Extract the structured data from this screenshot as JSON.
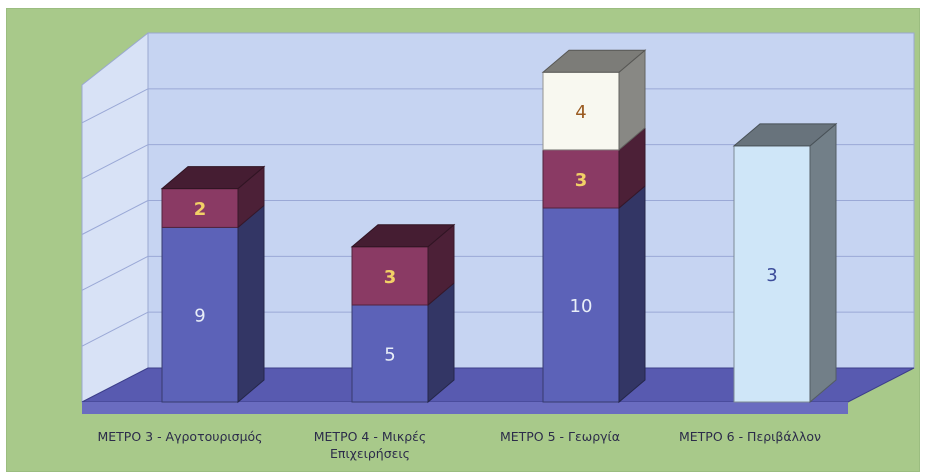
{
  "chart_data": {
    "type": "bar",
    "stacked": true,
    "three_d": true,
    "categories": [
      [
        "ΜΕΤΡΟ 3 - Αγροτουρισμός"
      ],
      [
        "ΜΕΤΡΟ 4 - Μικρές",
        "Επιχειρήσεις"
      ],
      [
        "ΜΕΤΡΟ 5 - Γεωργία"
      ],
      [
        "ΜΕΤΡΟ 6 - Περιβάλλον"
      ]
    ],
    "series": [
      {
        "color": "#5c62b8",
        "values": [
          9,
          5,
          10,
          0
        ]
      },
      {
        "color": "#8a3a64",
        "values": [
          2,
          3,
          3,
          0
        ]
      },
      {
        "color": "#f8f8f0",
        "values": [
          0,
          0,
          4,
          0
        ]
      },
      {
        "color": "#cfe6f8",
        "values": [
          0,
          0,
          0,
          3
        ]
      }
    ],
    "data_label_colors": [
      "#e8eef8",
      "#f2d066",
      "#9a5a20",
      "#3c4c9a"
    ],
    "bar_totals_heights": [
      11,
      8,
      17,
      3
    ],
    "grid": true,
    "legend": "none",
    "background_color": "#a8c98a",
    "wall_color": "#c6d4f2",
    "floor_color": "#585ab0"
  }
}
